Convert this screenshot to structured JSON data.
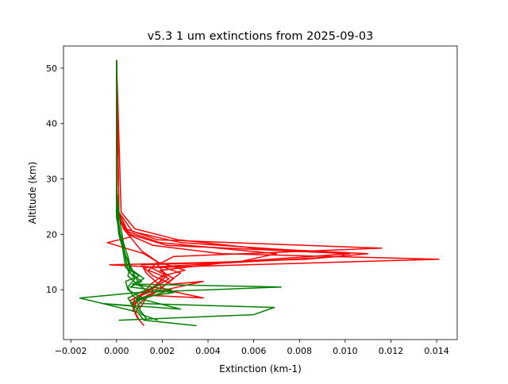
{
  "chart_data": {
    "type": "line",
    "title": "v5.3 1 um extinctions from 2025-09-03",
    "xlabel": "Extinction (km-1)",
    "ylabel": "Altitude (km)",
    "xlim": [
      -0.00232,
      0.0149
    ],
    "ylim": [
      1.0,
      54.0
    ],
    "xticks": [
      -0.002,
      0.0,
      0.002,
      0.004,
      0.006,
      0.008,
      0.01,
      0.012,
      0.014
    ],
    "xtick_labels": [
      "−0.002",
      "0.000",
      "0.002",
      "0.004",
      "0.006",
      "0.008",
      "0.010",
      "0.012",
      "0.014"
    ],
    "yticks": [
      10,
      20,
      30,
      40,
      50
    ],
    "ytick_labels": [
      "10",
      "20",
      "30",
      "40",
      "50"
    ],
    "grid": false,
    "colors": {
      "red_profiles": "#ff0000",
      "green_profiles": "#008000"
    },
    "series": [
      {
        "color": "#ff0000",
        "points": [
          [
            0.0012,
            3.5
          ],
          [
            0.0009,
            5.0
          ],
          [
            0.0007,
            7.0
          ],
          [
            0.0008,
            8.5
          ],
          [
            0.0015,
            10.0
          ],
          [
            0.0019,
            11.5
          ],
          [
            0.0021,
            13.0
          ],
          [
            0.0018,
            14.5
          ],
          [
            0.0025,
            16.0
          ],
          [
            0.0116,
            17.5
          ],
          [
            0.0018,
            19.0
          ],
          [
            0.0004,
            21.0
          ],
          [
            0.0001,
            23.0
          ],
          [
            2e-05,
            26.0
          ],
          [
            0.0,
            30.0
          ],
          [
            0.0,
            40.0
          ],
          [
            0.0,
            51.5
          ]
        ]
      },
      {
        "color": "#ff0000",
        "points": [
          [
            0.001,
            4.5
          ],
          [
            0.0008,
            6.0
          ],
          [
            0.0006,
            8.0
          ],
          [
            0.0012,
            9.5
          ],
          [
            0.0018,
            11.0
          ],
          [
            0.0022,
            12.5
          ],
          [
            0.0015,
            14.0
          ],
          [
            0.0141,
            15.5
          ],
          [
            0.0046,
            16.5
          ],
          [
            0.0016,
            18.0
          ],
          [
            0.0005,
            20.0
          ],
          [
            0.0001,
            23.0
          ],
          [
            0.0,
            27.0
          ],
          [
            0.0,
            35.0
          ],
          [
            0.0,
            51.5
          ]
        ]
      },
      {
        "color": "#ff0000",
        "points": [
          [
            0.0009,
            5.0
          ],
          [
            0.0007,
            7.5
          ],
          [
            0.0011,
            9.0
          ],
          [
            0.002,
            10.5
          ],
          [
            0.0025,
            12.0
          ],
          [
            0.0019,
            13.5
          ],
          [
            0.005,
            15.0
          ],
          [
            0.0102,
            16.5
          ],
          [
            0.0022,
            18.0
          ],
          [
            0.0006,
            20.0
          ],
          [
            0.0001,
            23.0
          ],
          [
            0.0,
            27.0
          ],
          [
            0.0,
            51.5
          ]
        ]
      },
      {
        "color": "#ff0000",
        "points": [
          [
            0.0008,
            5.5
          ],
          [
            0.001,
            7.5
          ],
          [
            0.0014,
            9.0
          ],
          [
            0.0038,
            8.5
          ],
          [
            0.0021,
            10.0
          ],
          [
            0.0017,
            11.5
          ],
          [
            0.0013,
            13.0
          ],
          [
            0.0011,
            14.5
          ],
          [
            0.0053,
            15.0
          ],
          [
            0.007,
            16.5
          ],
          [
            0.0019,
            18.5
          ],
          [
            0.0005,
            20.5
          ],
          [
            0.0001,
            24.0
          ],
          [
            0.0,
            51.5
          ]
        ]
      },
      {
        "color": "#ff0000",
        "points": [
          [
            0.0007,
            6.0
          ],
          [
            0.0009,
            8.0
          ],
          [
            0.0016,
            9.5
          ],
          [
            0.0038,
            11.5
          ],
          [
            0.0024,
            11.0
          ],
          [
            0.0016,
            12.5
          ],
          [
            0.0012,
            14.0
          ],
          [
            0.0098,
            16.0
          ],
          [
            0.01,
            16.5
          ],
          [
            0.0028,
            18.5
          ],
          [
            0.0007,
            20.5
          ],
          [
            0.0001,
            24.0
          ],
          [
            0.0,
            51.5
          ]
        ]
      },
      {
        "color": "#ff0000",
        "points": [
          [
            0.001,
            6.5
          ],
          [
            0.0013,
            8.5
          ],
          [
            0.0019,
            10.0
          ],
          [
            0.0023,
            11.5
          ],
          [
            0.0028,
            13.0
          ],
          [
            0.0021,
            14.0
          ],
          [
            -0.0003,
            14.5
          ],
          [
            0.0047,
            15.0
          ],
          [
            0.0083,
            15.5
          ],
          [
            0.011,
            16.5
          ],
          [
            0.006,
            17.5
          ],
          [
            0.0027,
            19.0
          ],
          [
            0.0008,
            21.0
          ],
          [
            0.0002,
            24.0
          ],
          [
            0.0,
            51.5
          ]
        ]
      },
      {
        "color": "#ff0000",
        "points": [
          [
            0.0007,
            7.0
          ],
          [
            0.0011,
            9.0
          ],
          [
            0.0017,
            10.5
          ],
          [
            0.0023,
            12.0
          ],
          [
            0.0014,
            13.5
          ],
          [
            0.0018,
            15.0
          ],
          [
            0.0012,
            16.5
          ],
          [
            -0.0004,
            18.5
          ],
          [
            0.0006,
            19.5
          ],
          [
            0.0003,
            21.0
          ],
          [
            0.0001,
            24.0
          ],
          [
            0.0,
            51.5
          ]
        ]
      },
      {
        "color": "#ff0000",
        "points": [
          [
            0.0006,
            8.0
          ],
          [
            0.0012,
            9.5
          ],
          [
            0.0015,
            11.0
          ],
          [
            0.002,
            12.5
          ],
          [
            0.003,
            13.5
          ],
          [
            0.0018,
            15.0
          ],
          [
            0.0011,
            17.0
          ],
          [
            0.0006,
            19.5
          ],
          [
            0.0002,
            22.0
          ],
          [
            0.0,
            26.0
          ],
          [
            0.0,
            51.5
          ]
        ]
      },
      {
        "color": "#008000",
        "points": [
          [
            0.0035,
            3.5
          ],
          [
            0.0012,
            4.5
          ],
          [
            0.0009,
            6.0
          ],
          [
            -0.0016,
            8.5
          ],
          [
            0.0009,
            9.5
          ],
          [
            0.0072,
            10.5
          ],
          [
            0.001,
            11.0
          ],
          [
            0.0008,
            12.5
          ],
          [
            0.0006,
            14.0
          ],
          [
            0.0005,
            16.0
          ],
          [
            0.0003,
            18.5
          ],
          [
            0.0002,
            21.0
          ],
          [
            0.0001,
            24.0
          ],
          [
            0.0,
            28.0
          ],
          [
            0.0,
            40.0
          ],
          [
            0.0,
            51.5
          ]
        ]
      },
      {
        "color": "#008000",
        "points": [
          [
            0.0001,
            4.5
          ],
          [
            0.006,
            5.5
          ],
          [
            0.0069,
            6.8
          ],
          [
            0.0011,
            7.5
          ],
          [
            0.0007,
            9.0
          ],
          [
            0.0005,
            10.5
          ],
          [
            0.0008,
            12.0
          ],
          [
            0.0005,
            13.5
          ],
          [
            0.0004,
            15.5
          ],
          [
            0.0003,
            18.0
          ],
          [
            0.0001,
            21.0
          ],
          [
            0.0,
            25.0
          ],
          [
            0.0,
            51.5
          ]
        ]
      },
      {
        "color": "#008000",
        "points": [
          [
            0.0018,
            4.5
          ],
          [
            0.0011,
            5.5
          ],
          [
            0.0008,
            7.0
          ],
          [
            -0.0006,
            7.5
          ],
          [
            0.0028,
            6.5
          ],
          [
            0.0009,
            8.5
          ],
          [
            0.0025,
            9.5
          ],
          [
            0.0006,
            10.5
          ],
          [
            0.0011,
            11.5
          ],
          [
            0.0006,
            13.0
          ],
          [
            0.0005,
            15.0
          ],
          [
            0.0003,
            17.5
          ],
          [
            0.0001,
            20.5
          ],
          [
            0.0,
            24.0
          ],
          [
            0.0,
            51.5
          ]
        ]
      },
      {
        "color": "#008000",
        "points": [
          [
            0.0013,
            4.8
          ],
          [
            0.001,
            6.5
          ],
          [
            0.0009,
            8.0
          ],
          [
            0.0024,
            10.0
          ],
          [
            0.0007,
            11.0
          ],
          [
            0.0012,
            12.0
          ],
          [
            0.0007,
            13.5
          ],
          [
            0.0004,
            16.0
          ],
          [
            0.0002,
            19.0
          ],
          [
            0.0001,
            22.0
          ],
          [
            0.0,
            26.0
          ],
          [
            0.0,
            51.5
          ]
        ]
      },
      {
        "color": "#008000",
        "points": [
          [
            0.0006,
            7.5
          ],
          [
            0.0011,
            8.5
          ],
          [
            0.0005,
            10.0
          ],
          [
            0.0004,
            11.5
          ],
          [
            0.001,
            12.5
          ],
          [
            0.0004,
            14.0
          ],
          [
            0.0003,
            16.5
          ],
          [
            0.0002,
            19.5
          ],
          [
            0.0,
            23.0
          ],
          [
            0.0,
            51.5
          ]
        ]
      },
      {
        "color": "#008000",
        "points": [
          [
            0.0008,
            6.5
          ],
          [
            0.0005,
            8.5
          ],
          [
            0.0013,
            10.0
          ],
          [
            0.0009,
            11.0
          ],
          [
            0.0005,
            12.5
          ],
          [
            0.0006,
            14.5
          ],
          [
            0.0003,
            17.0
          ],
          [
            0.0001,
            20.0
          ],
          [
            0.0,
            24.0
          ],
          [
            0.0,
            51.5
          ]
        ]
      }
    ]
  }
}
